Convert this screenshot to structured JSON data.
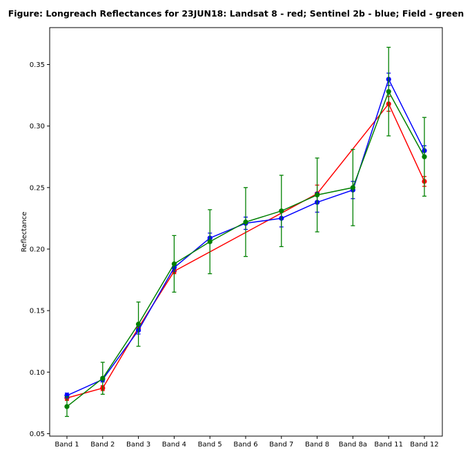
{
  "chart_data": {
    "type": "line",
    "title": "Figure: Longreach Reflectances for 23JUN18: Landsat 8 - red; Sentinel 2b - blue; Field - green",
    "xlabel": "",
    "ylabel": "Reflectance",
    "categories": [
      "Band 1",
      "Band 2",
      "Band 3",
      "Band 4",
      "Band 5",
      "Band 6",
      "Band 7",
      "Band 8",
      "Band 8a",
      "Band 11",
      "Band 12"
    ],
    "ylim": [
      0.048,
      0.38
    ],
    "yticks": [
      0.05,
      0.1,
      0.15,
      0.2,
      0.25,
      0.3,
      0.35
    ],
    "ytick_labels": [
      "0.05",
      "0.10",
      "0.15",
      "0.20",
      "0.25",
      "0.30",
      "0.35"
    ],
    "grid": false,
    "series": [
      {
        "color": "#ff0000",
        "values": [
          0.079,
          0.087,
          0.136,
          0.182,
          null,
          null,
          null,
          0.245,
          null,
          0.318,
          0.255
        ],
        "errors": [
          0.002,
          0.002,
          0.002,
          0.002,
          null,
          null,
          null,
          0.007,
          null,
          0.006,
          0.004
        ]
      },
      {
        "color": "#0000ff",
        "values": [
          0.081,
          0.094,
          0.134,
          0.185,
          0.209,
          0.221,
          0.225,
          0.238,
          0.248,
          0.338,
          0.28
        ],
        "errors": [
          0.002,
          0.002,
          0.003,
          0.003,
          0.004,
          0.005,
          0.007,
          0.008,
          0.007,
          0.005,
          0.004
        ]
      },
      {
        "color": "#008000",
        "values": [
          0.072,
          0.095,
          0.139,
          0.188,
          0.206,
          0.222,
          0.231,
          0.244,
          0.25,
          0.328,
          0.275
        ],
        "errors": [
          0.008,
          0.013,
          0.018,
          0.023,
          0.026,
          0.028,
          0.029,
          0.03,
          0.031,
          0.036,
          0.032
        ]
      }
    ]
  }
}
